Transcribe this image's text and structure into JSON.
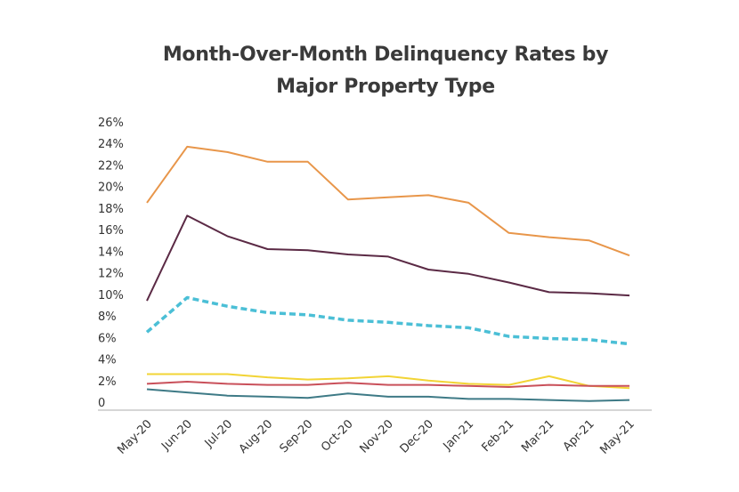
{
  "chart_data": {
    "type": "line",
    "title_lines": [
      "Month-Over-Month Delinquency Rates by",
      "Major Property Type"
    ],
    "title": "Month-Over-Month Delinquency Rates by Major Property Type",
    "xlabel": "",
    "ylabel": "",
    "ylim": [
      0,
      26
    ],
    "y_ticks": [
      0,
      2,
      4,
      6,
      8,
      10,
      12,
      14,
      16,
      18,
      20,
      22,
      24,
      26
    ],
    "y_tick_labels": [
      "0",
      "2%",
      "4%",
      "6%",
      "8%",
      "10%",
      "12%",
      "14%",
      "16%",
      "18%",
      "20%",
      "22%",
      "24%",
      "26%"
    ],
    "categories": [
      "May-20",
      "Jun-20",
      "Jul-20",
      "Aug-20",
      "Sep-20",
      "Oct-20",
      "Nov-20",
      "Dec-20",
      "Jan-21",
      "Feb-21",
      "Mar-21",
      "Apr-21",
      "May-21"
    ],
    "grid": false,
    "legend": "none",
    "series": [
      {
        "name": "Orange series",
        "color": "#E8964A",
        "dashed": false,
        "values": [
          18.5,
          23.7,
          23.2,
          22.3,
          22.3,
          18.8,
          19.0,
          19.2,
          18.5,
          15.7,
          15.3,
          15.0,
          13.6
        ]
      },
      {
        "name": "Purple series",
        "color": "#5B2A45",
        "dashed": false,
        "values": [
          9.4,
          17.3,
          15.4,
          14.2,
          14.1,
          13.7,
          13.5,
          12.3,
          11.9,
          11.1,
          10.2,
          10.1,
          9.9
        ]
      },
      {
        "name": "Blue dashed series",
        "color": "#4BBFD6",
        "dashed": true,
        "values": [
          6.5,
          9.7,
          8.9,
          8.3,
          8.1,
          7.6,
          7.4,
          7.1,
          6.9,
          6.1,
          5.9,
          5.8,
          5.4
        ]
      },
      {
        "name": "Yellow series",
        "color": "#F2D435",
        "dashed": false,
        "values": [
          2.6,
          2.6,
          2.6,
          2.3,
          2.1,
          2.2,
          2.4,
          2.0,
          1.7,
          1.6,
          2.4,
          1.5,
          1.3
        ]
      },
      {
        "name": "Red series",
        "color": "#C9505A",
        "dashed": false,
        "values": [
          1.7,
          1.9,
          1.7,
          1.6,
          1.6,
          1.8,
          1.6,
          1.6,
          1.5,
          1.4,
          1.6,
          1.5,
          1.5
        ]
      },
      {
        "name": "Teal series",
        "color": "#3E7A86",
        "dashed": false,
        "values": [
          1.2,
          0.9,
          0.6,
          0.5,
          0.4,
          0.8,
          0.5,
          0.5,
          0.3,
          0.3,
          0.2,
          0.1,
          0.2
        ]
      }
    ]
  }
}
